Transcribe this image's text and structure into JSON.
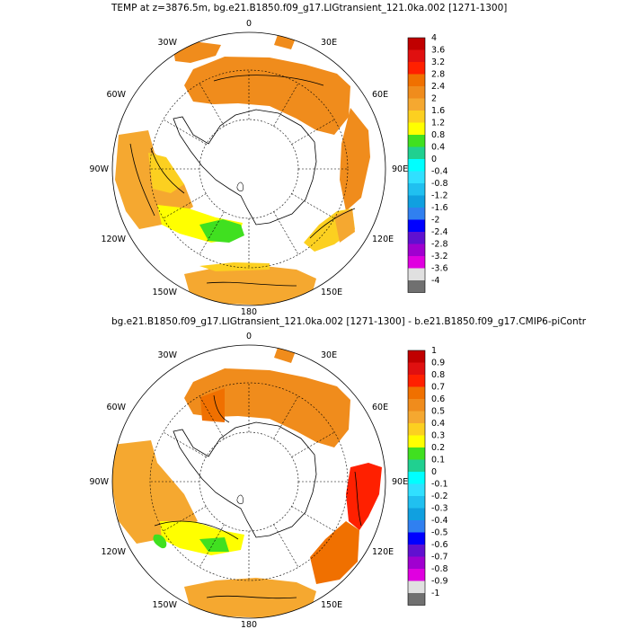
{
  "panel_top": {
    "title": "TEMP at z=3876.5m, bg.e21.B1850.f09_g17.LIGtransient_121.0ka.002 [1271-1300]",
    "colorbar_levels": [
      "4",
      "3.6",
      "3.2",
      "2.8",
      "2.4",
      "2",
      "1.6",
      "1.2",
      "0.8",
      "0.4",
      "0",
      "-0.4",
      "-0.8",
      "-1.2",
      "-1.6",
      "-2",
      "-2.4",
      "-2.8",
      "-3.2",
      "-3.6",
      "-4"
    ]
  },
  "panel_bottom": {
    "title": "bg.e21.B1850.f09_g17.LIGtransient_121.0ka.002 [1271-1300] - b.e21.B1850.f09_g17.CMIP6-piContr",
    "colorbar_levels": [
      "1",
      "0.9",
      "0.8",
      "0.7",
      "0.6",
      "0.5",
      "0.4",
      "0.3",
      "0.2",
      "0.1",
      "0",
      "-0.1",
      "-0.2",
      "-0.3",
      "-0.4",
      "-0.5",
      "-0.6",
      "-0.7",
      "-0.8",
      "-0.9",
      "-1"
    ]
  },
  "lon_labels": {
    "l0": "0",
    "l30e": "30E",
    "l60e": "60E",
    "l90e": "90E",
    "l120e": "120E",
    "l150e": "150E",
    "l180": "180",
    "l150w": "150W",
    "l120w": "120W",
    "l90w": "90W",
    "l60w": "60W",
    "l30w": "30W"
  },
  "colorbar_colors": [
    "#c00000",
    "#e01010",
    "#ff2000",
    "#f07000",
    "#f08c1c",
    "#f5a830",
    "#fcd020",
    "#ffff00",
    "#40e020",
    "#20d090",
    "#00ffff",
    "#30e0ff",
    "#20c0f0",
    "#10a0e0",
    "#3080f0",
    "#0000ff",
    "#6010d0",
    "#a000d0",
    "#e000e0",
    "#e0e0e0",
    "#707070"
  ]
}
